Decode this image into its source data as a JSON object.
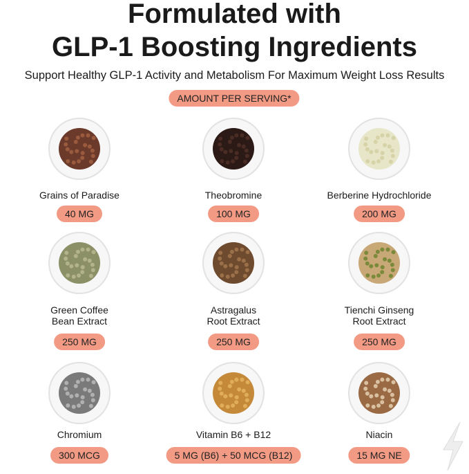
{
  "header": {
    "title": [
      "Formulated with",
      "GLP-1 Boosting Ingredients"
    ],
    "subtitle": "Support Healthy GLP-1 Activity and Metabolism For Maximum Weight Loss Results",
    "badge": "AMOUNT PER SERVING*"
  },
  "items": [
    {
      "name": [
        "Grains of Paradise"
      ],
      "amount": "40 MG"
    },
    {
      "name": [
        "Theobromine"
      ],
      "amount": "100 MG"
    },
    {
      "name": [
        "Berberine Hydrochloride"
      ],
      "amount": "200 MG"
    },
    {
      "name": [
        "Green Coffee",
        "Bean Extract"
      ],
      "amount": "250 MG"
    },
    {
      "name": [
        "Astragalus",
        "Root Extract"
      ],
      "amount": "250 MG"
    },
    {
      "name": [
        "Tienchi Ginseng",
        "Root Extract"
      ],
      "amount": "250 MG"
    },
    {
      "name": [
        "Chromium"
      ],
      "amount": "300 MCG"
    },
    {
      "name": [
        "Vitamin B6 + B12"
      ],
      "amount": "5 MG (B6) + 50 MCG (B12)"
    },
    {
      "name": [
        "Niacin"
      ],
      "amount": "15 MG NE"
    }
  ]
}
